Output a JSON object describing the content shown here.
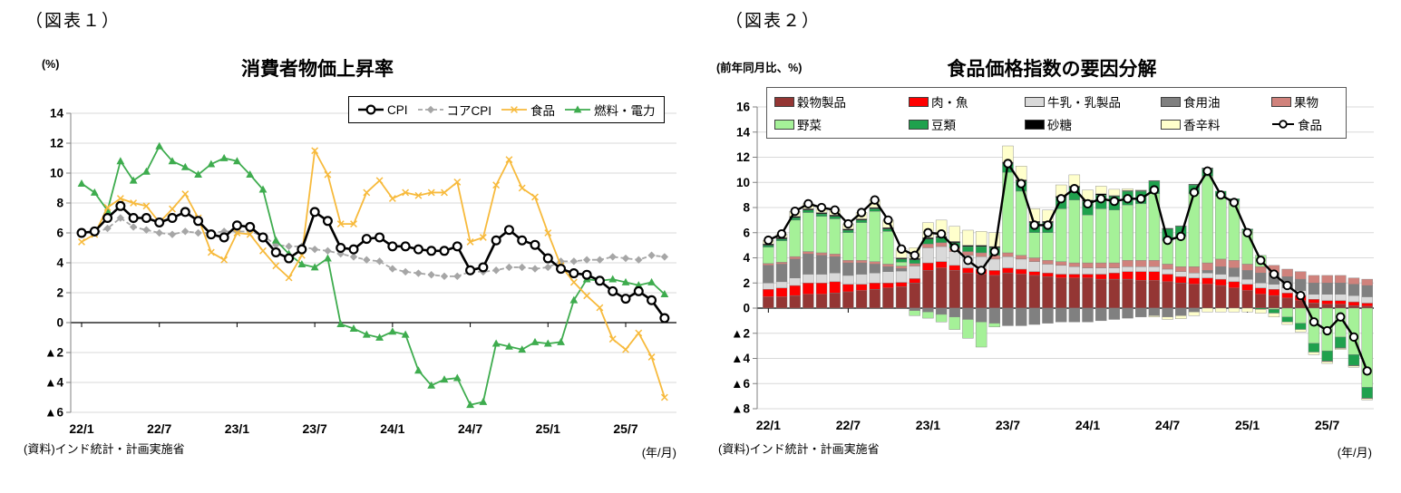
{
  "page": {
    "background": "#FFFFFF",
    "negative_prefix": "▲"
  },
  "chart_data": [
    {
      "type": "line",
      "tag": "（図表１）",
      "title": "消費者物価上昇率",
      "unit_label": "(%)",
      "source": "(資料)インド統計・計画実施省",
      "axis_note": "(年/月)",
      "ylim": [
        -6,
        14
      ],
      "grid": true,
      "legend_position": "top-right-inside",
      "x_tick_labels": [
        "22/1",
        "22/7",
        "23/1",
        "23/7",
        "24/1",
        "24/7",
        "25/1",
        "25/7"
      ],
      "x_tick_indices": [
        0,
        6,
        12,
        18,
        24,
        30,
        36,
        42
      ],
      "categories": [
        "22/1",
        "22/2",
        "22/3",
        "22/4",
        "22/5",
        "22/6",
        "22/7",
        "22/8",
        "22/9",
        "22/10",
        "22/11",
        "22/12",
        "23/1",
        "23/2",
        "23/3",
        "23/4",
        "23/5",
        "23/6",
        "23/7",
        "23/8",
        "23/9",
        "23/10",
        "23/11",
        "23/12",
        "24/1",
        "24/2",
        "24/3",
        "24/4",
        "24/5",
        "24/6",
        "24/7",
        "24/8",
        "24/9",
        "24/10",
        "24/11",
        "24/12",
        "25/1",
        "25/2",
        "25/3",
        "25/4",
        "25/5",
        "25/6",
        "25/7",
        "25/8",
        "25/9",
        "25/10"
      ],
      "series": [
        {
          "name": "コアCPI",
          "color": "#A6A6A6",
          "marker": "diamond",
          "dash": "5,3",
          "width": 1.8,
          "values": [
            6.0,
            6.0,
            6.3,
            7.0,
            6.4,
            6.2,
            6.0,
            5.9,
            6.1,
            6.0,
            6.0,
            6.1,
            6.1,
            6.1,
            5.8,
            5.2,
            5.1,
            5.1,
            4.9,
            4.8,
            4.6,
            4.4,
            4.2,
            4.1,
            3.6,
            3.4,
            3.3,
            3.2,
            3.1,
            3.1,
            3.4,
            3.4,
            3.5,
            3.7,
            3.7,
            3.6,
            3.7,
            4.1,
            4.1,
            4.2,
            4.2,
            4.4,
            4.3,
            4.2,
            4.5,
            4.4
          ]
        },
        {
          "name": "燃料・電力",
          "color": "#3EAC4E",
          "marker": "triangle",
          "dash": null,
          "width": 1.8,
          "values": [
            9.3,
            8.7,
            7.5,
            10.8,
            9.5,
            10.1,
            11.8,
            10.8,
            10.4,
            9.9,
            10.6,
            11.0,
            10.8,
            9.9,
            8.9,
            5.5,
            4.6,
            3.9,
            3.7,
            4.3,
            -0.1,
            -0.4,
            -0.8,
            -1.0,
            -0.6,
            -0.8,
            -3.2,
            -4.2,
            -3.8,
            -3.7,
            -5.5,
            -5.3,
            -1.4,
            -1.6,
            -1.8,
            -1.3,
            -1.4,
            -1.3,
            1.5,
            2.9,
            2.8,
            2.9,
            2.7,
            2.5,
            2.7,
            1.9
          ]
        },
        {
          "name": "食品",
          "color": "#F7BA3C",
          "marker": "xcross",
          "dash": null,
          "width": 1.8,
          "values": [
            5.4,
            5.9,
            7.7,
            8.3,
            8.0,
            7.8,
            6.7,
            7.6,
            8.6,
            7.0,
            4.7,
            4.2,
            6.0,
            5.9,
            4.8,
            3.8,
            3.0,
            4.5,
            11.5,
            9.9,
            6.6,
            6.6,
            8.7,
            9.5,
            8.3,
            8.7,
            8.5,
            8.7,
            8.7,
            9.4,
            5.4,
            5.7,
            9.2,
            10.9,
            9.0,
            8.4,
            6.0,
            3.8,
            2.7,
            1.8,
            1.0,
            -1.1,
            -1.8,
            -0.7,
            -2.3,
            -5.0
          ]
        },
        {
          "name": "CPI",
          "color": "#000000",
          "marker": "circle",
          "dash": null,
          "width": 2.6,
          "values": [
            6.0,
            6.1,
            7.0,
            7.8,
            7.0,
            7.0,
            6.7,
            7.0,
            7.4,
            6.8,
            5.9,
            5.7,
            6.5,
            6.4,
            5.7,
            4.7,
            4.3,
            4.9,
            7.4,
            6.8,
            5.0,
            4.9,
            5.6,
            5.7,
            5.1,
            5.1,
            4.9,
            4.8,
            4.8,
            5.1,
            3.5,
            3.7,
            5.5,
            6.2,
            5.5,
            5.2,
            4.3,
            3.6,
            3.3,
            3.2,
            2.8,
            2.1,
            1.6,
            2.1,
            1.5,
            0.3
          ]
        }
      ],
      "legend_order": [
        "CPI",
        "コアCPI",
        "食品",
        "燃料・電力"
      ]
    },
    {
      "type": "bar",
      "stacked": true,
      "tag": "（図表２）",
      "title": "食品価格指数の要因分解",
      "unit_label": "(前年同月比、%)",
      "source": "(資料)インド統計・計画実施省",
      "axis_note": "(年/月)",
      "ylim": [
        -8,
        16
      ],
      "grid": true,
      "legend_position": "top-inside",
      "x_tick_labels": [
        "22/1",
        "22/7",
        "23/1",
        "23/7",
        "24/1",
        "24/7",
        "25/1",
        "25/7"
      ],
      "x_tick_indices": [
        0,
        6,
        12,
        18,
        24,
        30,
        36,
        42
      ],
      "categories": [
        "22/1",
        "22/2",
        "22/3",
        "22/4",
        "22/5",
        "22/6",
        "22/7",
        "22/8",
        "22/9",
        "22/10",
        "22/11",
        "22/12",
        "23/1",
        "23/2",
        "23/3",
        "23/4",
        "23/5",
        "23/6",
        "23/7",
        "23/8",
        "23/9",
        "23/10",
        "23/11",
        "23/12",
        "24/1",
        "24/2",
        "24/3",
        "24/4",
        "24/5",
        "24/6",
        "24/7",
        "24/8",
        "24/9",
        "24/10",
        "24/11",
        "24/12",
        "25/1",
        "25/2",
        "25/3",
        "25/4",
        "25/5",
        "25/6",
        "25/7",
        "25/8",
        "25/9",
        "25/10"
      ],
      "series": [
        {
          "name": "穀物製品",
          "type": "bar",
          "color": "#943634",
          "values": [
            0.9,
            0.9,
            1.0,
            1.1,
            1.1,
            1.2,
            1.3,
            1.4,
            1.5,
            1.6,
            1.7,
            2.0,
            3.0,
            3.2,
            3.0,
            2.8,
            2.7,
            2.6,
            2.8,
            2.7,
            2.6,
            2.5,
            2.4,
            2.4,
            2.4,
            2.3,
            2.3,
            2.3,
            2.2,
            2.2,
            2.1,
            2.0,
            1.9,
            1.9,
            1.8,
            1.6,
            1.4,
            1.1,
            1.0,
            0.8,
            0.6,
            0.4,
            0.3,
            0.3,
            0.2,
            0.15
          ]
        },
        {
          "name": "肉・魚",
          "type": "bar",
          "color": "#FF0000",
          "values": [
            0.6,
            0.7,
            0.8,
            0.9,
            0.9,
            0.9,
            0.6,
            0.5,
            0.5,
            0.4,
            0.35,
            0.35,
            0.6,
            0.5,
            0.4,
            0.4,
            0.4,
            0.4,
            0.4,
            0.4,
            0.3,
            0.3,
            0.3,
            0.3,
            0.3,
            0.4,
            0.5,
            0.6,
            0.7,
            0.7,
            0.6,
            0.5,
            0.5,
            0.5,
            0.5,
            0.5,
            0.5,
            0.5,
            0.5,
            0.4,
            0.4,
            0.3,
            0.3,
            0.3,
            0.3,
            0.25
          ]
        },
        {
          "name": "牛乳・乳製品",
          "type": "bar",
          "color": "#D9D9D9",
          "values": [
            0.5,
            0.5,
            0.6,
            0.7,
            0.7,
            0.7,
            0.7,
            0.8,
            0.8,
            0.9,
            0.9,
            1.0,
            1.2,
            1.2,
            1.1,
            1.0,
            1.0,
            0.9,
            0.9,
            0.8,
            0.8,
            0.7,
            0.7,
            0.6,
            0.5,
            0.5,
            0.4,
            0.4,
            0.4,
            0.4,
            0.4,
            0.4,
            0.4,
            0.4,
            0.4,
            0.4,
            0.4,
            0.4,
            0.4,
            0.4,
            0.4,
            0.4,
            0.5,
            0.5,
            0.5,
            0.5
          ]
        },
        {
          "name": "食用油",
          "type": "bar",
          "color": "#808080",
          "values": [
            1.4,
            1.4,
            1.5,
            1.6,
            1.5,
            1.3,
            1.0,
            0.9,
            0.7,
            0.4,
            0.2,
            -0.2,
            -0.3,
            -0.5,
            -0.7,
            -0.9,
            -1.1,
            -1.2,
            -1.4,
            -1.4,
            -1.3,
            -1.2,
            -1.1,
            -1.1,
            -1.1,
            -1.0,
            -0.9,
            -0.8,
            -0.7,
            -0.6,
            -0.7,
            -0.6,
            -0.3,
            0.2,
            0.6,
            0.7,
            0.7,
            0.8,
            0.9,
            0.9,
            0.9,
            0.9,
            0.9,
            0.9,
            0.9,
            0.9
          ]
        },
        {
          "name": "果物",
          "type": "bar",
          "color": "#D0827C",
          "values": [
            0.15,
            0.15,
            0.2,
            0.2,
            0.2,
            0.2,
            0.2,
            0.2,
            0.2,
            0.2,
            0.2,
            0.2,
            0.3,
            0.3,
            0.3,
            0.3,
            0.3,
            0.3,
            0.3,
            0.3,
            0.3,
            0.3,
            0.3,
            0.3,
            0.4,
            0.4,
            0.4,
            0.5,
            0.5,
            0.5,
            0.4,
            0.4,
            0.5,
            0.6,
            0.6,
            0.6,
            0.5,
            0.5,
            0.6,
            0.6,
            0.6,
            0.6,
            0.6,
            0.6,
            0.5,
            0.5
          ]
        },
        {
          "name": "野菜",
          "type": "bar",
          "color": "#A5F198",
          "values": [
            1.3,
            1.7,
            2.9,
            3.1,
            2.9,
            2.8,
            2.2,
            3.0,
            4.0,
            2.6,
            0.3,
            -0.4,
            -0.5,
            -0.6,
            -1.0,
            -1.5,
            -2.0,
            -0.3,
            6.4,
            5.1,
            2.0,
            2.2,
            4.2,
            5.0,
            3.8,
            4.3,
            4.2,
            4.4,
            4.5,
            5.3,
            1.9,
            2.4,
            5.8,
            6.9,
            5.0,
            4.7,
            2.7,
            0.9,
            -0.1,
            -0.7,
            -1.2,
            -2.8,
            -3.4,
            -2.3,
            -3.7,
            -6.3
          ]
        },
        {
          "name": "豆類",
          "type": "bar",
          "color": "#1FA14D",
          "values": [
            0.15,
            0.15,
            0.2,
            0.2,
            0.2,
            0.2,
            0.2,
            0.2,
            0.2,
            0.2,
            0.25,
            0.3,
            0.4,
            0.4,
            0.4,
            0.4,
            0.5,
            0.6,
            0.7,
            0.8,
            0.8,
            0.8,
            0.9,
            1.0,
            1.1,
            1.1,
            1.1,
            1.1,
            1.0,
            1.0,
            0.9,
            0.8,
            0.7,
            0.6,
            0.4,
            0.2,
            0.1,
            -0.1,
            -0.3,
            -0.4,
            -0.5,
            -0.7,
            -0.8,
            -0.85,
            -0.85,
            -0.85
          ]
        },
        {
          "name": "砂糖",
          "type": "bar",
          "color": "#000000",
          "values": [
            0.1,
            0.1,
            0.1,
            0.1,
            0.1,
            0.1,
            0.1,
            0.1,
            0.1,
            0.1,
            0.1,
            0.1,
            0.1,
            0.1,
            0.1,
            0.1,
            0.1,
            0.1,
            0.1,
            0.1,
            0.1,
            0.1,
            0.1,
            0.1,
            0.1,
            0.1,
            0.05,
            0.05,
            0.05,
            0.05,
            0.05,
            0.05,
            0.05,
            0.05,
            0.0,
            0.0,
            0.0,
            0.0,
            0.0,
            0.0,
            0.0,
            0.0,
            -0.05,
            -0.05,
            -0.05,
            -0.05
          ]
        },
        {
          "name": "香辛料",
          "type": "bar",
          "color": "#FFFFCC",
          "values": [
            0.3,
            0.3,
            0.4,
            0.4,
            0.4,
            0.4,
            0.4,
            0.5,
            0.6,
            0.6,
            0.7,
            0.85,
            1.2,
            1.3,
            1.2,
            1.2,
            1.1,
            1.1,
            1.3,
            1.1,
            1.0,
            0.9,
            0.9,
            0.9,
            0.8,
            0.6,
            0.5,
            0.15,
            0.05,
            -0.1,
            -0.2,
            -0.25,
            -0.3,
            -0.3,
            -0.3,
            -0.3,
            -0.3,
            -0.3,
            -0.3,
            -0.2,
            -0.2,
            -0.2,
            -0.15,
            -0.1,
            -0.1,
            -0.1
          ]
        },
        {
          "name": "食品",
          "type": "line",
          "color": "#000000",
          "marker": "circle",
          "width": 2.4,
          "values": [
            5.4,
            5.9,
            7.7,
            8.3,
            8.0,
            7.8,
            6.7,
            7.6,
            8.6,
            7.0,
            4.7,
            4.2,
            6.0,
            5.9,
            4.8,
            3.8,
            3.0,
            4.5,
            11.5,
            9.9,
            6.6,
            6.6,
            8.7,
            9.5,
            8.3,
            8.7,
            8.5,
            8.7,
            8.7,
            9.4,
            5.4,
            5.7,
            9.2,
            10.9,
            9.0,
            8.4,
            6.0,
            3.8,
            2.7,
            1.8,
            1.0,
            -1.1,
            -1.8,
            -0.7,
            -2.3,
            -5.0
          ]
        }
      ]
    }
  ]
}
